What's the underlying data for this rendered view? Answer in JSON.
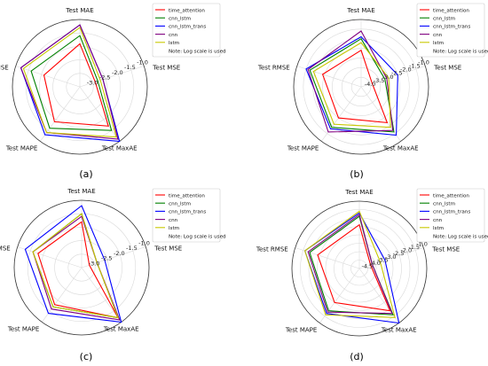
{
  "colors": {
    "time_attention": "#ff0000",
    "cnn_lstm": "#008000",
    "cnn_lstm_trans": "#0000ff",
    "cnn": "#800080",
    "lstm": "#c8c800",
    "grid": "#d9d9d9",
    "frame": "#000000"
  },
  "legend_entries": [
    {
      "key": "time_attention",
      "label": "time_attention",
      "marker": "line"
    },
    {
      "key": "cnn_lstm",
      "label": "cnn_lstm",
      "marker": "line"
    },
    {
      "key": "cnn_lstm_trans",
      "label": "cnn_lstm_trans",
      "marker": "line"
    },
    {
      "key": "cnn",
      "label": "cnn",
      "marker": "line"
    },
    {
      "key": "lstm",
      "label": "lstm",
      "marker": "line"
    },
    {
      "key": "note",
      "label": "Note: Log scale is used",
      "marker": "none"
    }
  ],
  "chart_data": [
    {
      "type": "radar",
      "panel_label": "(a)",
      "axes": [
        "Test MAE",
        "Test MSE",
        "Test MaxAE",
        "Test MAPE",
        "Test RMSE"
      ],
      "scale": "log",
      "radial_ticks": [
        "-3.0",
        "-2.5",
        "-2.0",
        "-1.5",
        "-1.0"
      ],
      "r_range": [
        -3.5,
        -1.0
      ],
      "grid": true,
      "legend_position": "top-right",
      "series": [
        {
          "name": "time_attention",
          "values": [
            -1.9,
            -2.9,
            -1.7,
            -1.9,
            -2.1
          ]
        },
        {
          "name": "cnn_lstm",
          "values": [
            -1.6,
            -2.8,
            -1.5,
            -1.6,
            -1.6
          ]
        },
        {
          "name": "cnn_lstm_trans",
          "values": [
            -1.2,
            -2.6,
            -1.0,
            -1.3,
            -1.2
          ]
        },
        {
          "name": "cnn",
          "values": [
            -1.2,
            -2.6,
            -1.1,
            -1.4,
            -1.2
          ]
        },
        {
          "name": "lstm",
          "values": [
            -1.3,
            -2.7,
            -1.2,
            -1.4,
            -1.3
          ]
        }
      ]
    },
    {
      "type": "radar",
      "panel_label": "(b)",
      "axes": [
        "Test MAE",
        "Test MSE",
        "Test MaxAE",
        "Test MAPE",
        "Test RMSE"
      ],
      "scale": "log",
      "radial_ticks": [
        "-4.0",
        "-3.5",
        "-3.0",
        "-2.5",
        "-2.0",
        "-1.5",
        "-1.0"
      ],
      "r_range": [
        -4.5,
        -1.0
      ],
      "grid": true,
      "legend_position": "top-right",
      "series": [
        {
          "name": "time_attention",
          "values": [
            -2.6,
            -3.9,
            -2.2,
            -2.5,
            -2.4
          ]
        },
        {
          "name": "cnn_lstm",
          "values": [
            -2.0,
            -3.2,
            -1.6,
            -1.9,
            -1.7
          ]
        },
        {
          "name": "cnn_lstm_trans",
          "values": [
            -1.9,
            -2.5,
            -1.4,
            -1.8,
            -1.5
          ]
        },
        {
          "name": "cnn",
          "values": [
            -1.6,
            -3.1,
            -1.7,
            -1.6,
            -1.6
          ]
        },
        {
          "name": "lstm",
          "values": [
            -2.2,
            -3.0,
            -1.9,
            -2.1,
            -1.9
          ]
        }
      ]
    },
    {
      "type": "radar",
      "panel_label": "(c)",
      "axes": [
        "Test MAE",
        "Test MSE",
        "Test MaxAE",
        "Test MAPE",
        "Test RMSE"
      ],
      "scale": "log",
      "radial_ticks": [
        "-3.0",
        "-2.5",
        "-2.0",
        "-1.5",
        "-1.0"
      ],
      "r_range": [
        -3.5,
        -1.0
      ],
      "grid": true,
      "legend_position": "top-right",
      "series": [
        {
          "name": "time_attention",
          "values": [
            -1.8,
            -3.2,
            -1.2,
            -1.8,
            -1.8
          ]
        },
        {
          "name": "cnn_lstm",
          "values": [
            -1.5,
            -2.9,
            -1.2,
            -1.7,
            -1.6
          ]
        },
        {
          "name": "cnn_lstm_trans",
          "values": [
            -1.2,
            -2.6,
            -1.0,
            -1.4,
            -1.3
          ]
        },
        {
          "name": "cnn",
          "values": [
            -1.6,
            -2.9,
            -1.1,
            -1.6,
            -1.6
          ]
        },
        {
          "name": "lstm",
          "values": [
            -1.5,
            -2.9,
            -1.2,
            -1.7,
            -1.6
          ]
        }
      ]
    },
    {
      "type": "radar",
      "panel_label": "(d)",
      "axes": [
        "Test MAE",
        "Test MSE",
        "Test MaxAE",
        "Test MAPE",
        "Test RMSE"
      ],
      "scale": "log",
      "radial_ticks": [
        "-4.5",
        "-4.0",
        "-3.5",
        "-3.0",
        "-2.5",
        "-2.0",
        "-1.5",
        "-1.0"
      ],
      "r_range": [
        -5.0,
        -1.0
      ],
      "grid": true,
      "legend_position": "top-right",
      "series": [
        {
          "name": "time_attention",
          "values": [
            -2.4,
            -4.3,
            -1.9,
            -2.5,
            -2.4
          ]
        },
        {
          "name": "cnn_lstm",
          "values": [
            -1.9,
            -4.2,
            -1.6,
            -1.9,
            -1.9
          ]
        },
        {
          "name": "cnn_lstm_trans",
          "values": [
            -1.7,
            -3.4,
            -1.0,
            -1.7,
            -1.6
          ]
        },
        {
          "name": "cnn",
          "values": [
            -1.8,
            -4.2,
            -1.7,
            -1.8,
            -1.8
          ]
        },
        {
          "name": "lstm",
          "values": [
            -1.6,
            -3.7,
            -1.4,
            -1.6,
            -1.6
          ]
        }
      ]
    }
  ]
}
